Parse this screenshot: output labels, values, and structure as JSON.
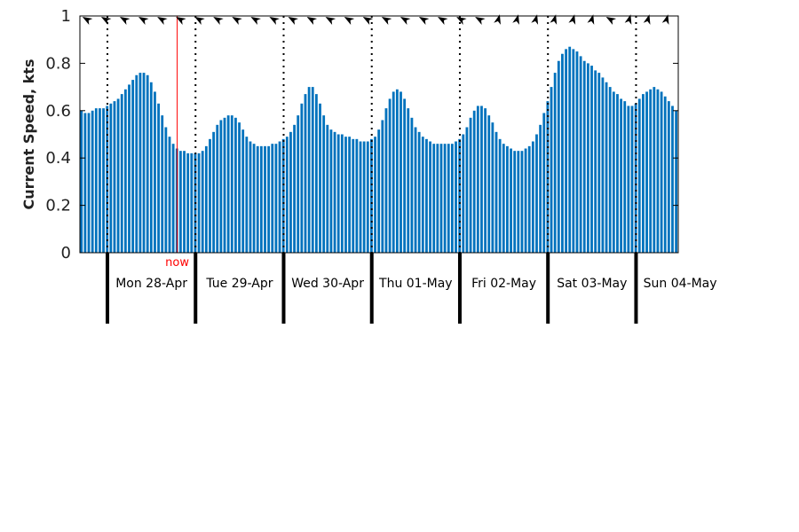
{
  "chart_data": {
    "type": "bar",
    "title": "",
    "xlabel": "",
    "ylabel": "Current Speed, kts",
    "ylim": [
      0,
      1
    ],
    "yticks": [
      "0",
      "0.2",
      "0.4",
      "0.6",
      "0.8",
      "1"
    ],
    "grid": false,
    "legend": "none",
    "interval_hours": 1,
    "now_label": "now",
    "now_hour_index": 26,
    "days": [
      {
        "label": "Mon 28-Apr",
        "midnight_hour_index": 7
      },
      {
        "label": "Tue 29-Apr",
        "midnight_hour_index": 31
      },
      {
        "label": "Wed 30-Apr",
        "midnight_hour_index": 55
      },
      {
        "label": "Thu 01-May",
        "midnight_hour_index": 79
      },
      {
        "label": "Fri 02-May",
        "midnight_hour_index": 103
      },
      {
        "label": "Sat 03-May",
        "midnight_hour_index": 127
      },
      {
        "label": "Sun 04-May",
        "midnight_hour_index": 151
      }
    ],
    "values": [
      0.6,
      0.59,
      0.59,
      0.6,
      0.61,
      0.61,
      0.61,
      0.62,
      0.63,
      0.64,
      0.65,
      0.67,
      0.69,
      0.71,
      0.73,
      0.75,
      0.76,
      0.76,
      0.75,
      0.72,
      0.68,
      0.63,
      0.58,
      0.53,
      0.49,
      0.46,
      0.44,
      0.43,
      0.43,
      0.42,
      0.42,
      0.42,
      0.42,
      0.43,
      0.45,
      0.48,
      0.51,
      0.54,
      0.56,
      0.57,
      0.58,
      0.58,
      0.57,
      0.55,
      0.52,
      0.49,
      0.47,
      0.46,
      0.45,
      0.45,
      0.45,
      0.45,
      0.46,
      0.46,
      0.47,
      0.48,
      0.49,
      0.51,
      0.54,
      0.58,
      0.63,
      0.67,
      0.7,
      0.7,
      0.67,
      0.63,
      0.58,
      0.54,
      0.52,
      0.51,
      0.5,
      0.5,
      0.49,
      0.49,
      0.48,
      0.48,
      0.47,
      0.47,
      0.47,
      0.48,
      0.49,
      0.52,
      0.56,
      0.61,
      0.65,
      0.68,
      0.69,
      0.68,
      0.65,
      0.61,
      0.57,
      0.53,
      0.51,
      0.49,
      0.48,
      0.47,
      0.46,
      0.46,
      0.46,
      0.46,
      0.46,
      0.46,
      0.47,
      0.48,
      0.5,
      0.53,
      0.57,
      0.6,
      0.62,
      0.62,
      0.61,
      0.58,
      0.55,
      0.51,
      0.48,
      0.46,
      0.45,
      0.44,
      0.43,
      0.43,
      0.43,
      0.44,
      0.45,
      0.47,
      0.5,
      0.54,
      0.59,
      0.64,
      0.7,
      0.76,
      0.81,
      0.84,
      0.86,
      0.87,
      0.86,
      0.85,
      0.83,
      0.81,
      0.8,
      0.79,
      0.77,
      0.76,
      0.74,
      0.72,
      0.7,
      0.68,
      0.67,
      0.65,
      0.64,
      0.62,
      0.62,
      0.63,
      0.65,
      0.67,
      0.68,
      0.69,
      0.7,
      0.69,
      0.68,
      0.66,
      0.64,
      0.62,
      0.6
    ],
    "direction_arrows": {
      "count": 32,
      "directions": [
        "NW",
        "NW",
        "NW",
        "NW",
        "NW",
        "NW",
        "NW",
        "NW",
        "NW",
        "NW",
        "NW",
        "NW",
        "NW",
        "NW",
        "NW",
        "NW",
        "NW",
        "NW",
        "NW",
        "NW",
        "NW",
        "NW",
        "N",
        "N",
        "N",
        "N",
        "N",
        "N",
        "NW",
        "N",
        "N",
        "N"
      ]
    },
    "colors": {
      "bars": "#0072BD",
      "now_line": "#FF0000",
      "day_separator": "#000000",
      "axis": "#000000"
    }
  }
}
